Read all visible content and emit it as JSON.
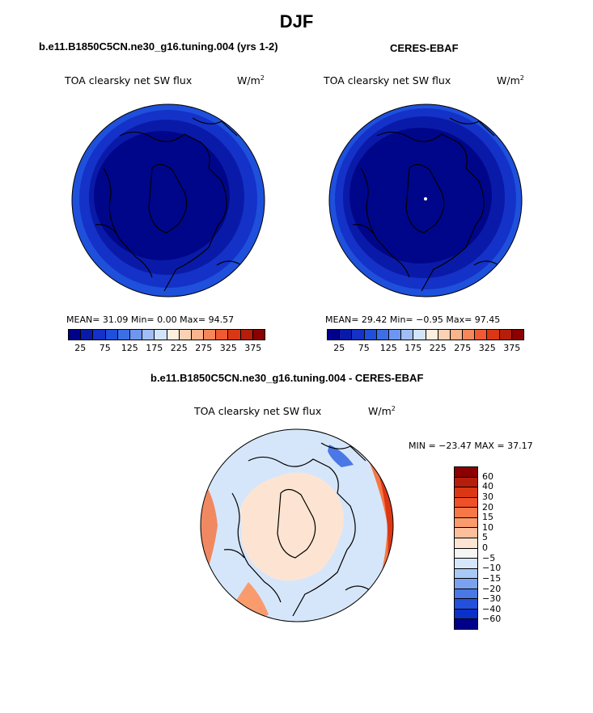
{
  "title": "DJF",
  "panel_left": {
    "case_title": "b.e11.B1850C5CN.ne30_g16.tuning.004 (yrs 1-2)",
    "plot_title": "TOA clearsky net SW flux",
    "units_prefix": "W/m",
    "units_sup": "2",
    "stats": "MEAN=   31.09   Min=    0.00   Max=   94.57"
  },
  "panel_right": {
    "case_title": "CERES-EBAF",
    "plot_title": "TOA clearsky net SW flux",
    "units_prefix": "W/m",
    "units_sup": "2",
    "stats": "MEAN=   29.42   Min=   −0.95   Max=   97.45"
  },
  "panel_diff": {
    "case_title": "b.e11.B1850C5CN.ne30_g16.tuning.004 - CERES-EBAF",
    "plot_title": "TOA clearsky net SW flux",
    "units_prefix": "W/m",
    "units_sup": "2",
    "stats": "MIN = −23.47  MAX =   37.17"
  },
  "colorbar_abs": {
    "colors": [
      "#00008b",
      "#0a1aa8",
      "#1432c8",
      "#1e50dc",
      "#3c6ee6",
      "#6e96f0",
      "#a0bef5",
      "#d2e4fa",
      "#fdeee0",
      "#fcd2b4",
      "#fbb48c",
      "#f5875a",
      "#f05a32",
      "#dc3714",
      "#b41e0a",
      "#8b0000"
    ],
    "labels": [
      "25",
      "75",
      "125",
      "175",
      "225",
      "275",
      "325",
      "375"
    ]
  },
  "colorbar_diff": {
    "colors": [
      "#8b0000",
      "#b41e0a",
      "#dc3714",
      "#f05028",
      "#f57846",
      "#fa9b6e",
      "#fcbe9b",
      "#fde4d2",
      "#f5f5f5",
      "#d6e6fa",
      "#a8c8f5",
      "#7aa2f0",
      "#4a78e6",
      "#2350dc",
      "#0a30c8",
      "#00008b"
    ],
    "labels": [
      "60",
      "40",
      "30",
      "20",
      "15",
      "10",
      "5",
      "0",
      "−5",
      "−10",
      "−15",
      "−20",
      "−30",
      "−40",
      "−60"
    ]
  },
  "map_colors": {
    "abs_inner": "#00068a",
    "abs_mid": "#0a1aa8",
    "abs_ring1": "#1432c8",
    "abs_ring2": "#1e50dc",
    "diff_land": "#fde4d2",
    "diff_ocean": "#d6e6fa",
    "diff_warm": "#f57846",
    "diff_hot": "#dc3714",
    "diff_cold": "#4a78e6"
  }
}
